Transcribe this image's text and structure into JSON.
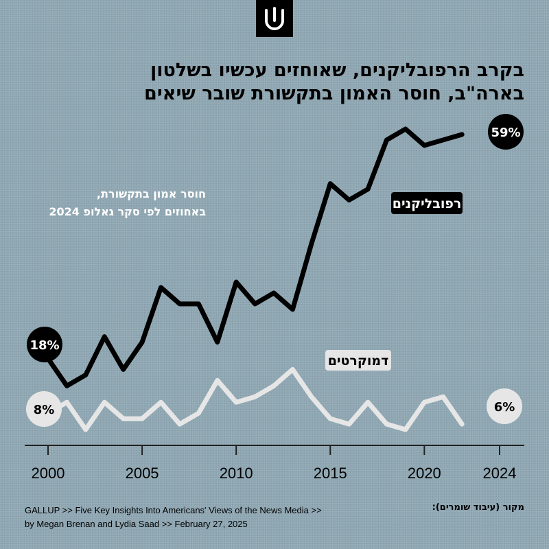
{
  "title_line1": "בקרב הרפובליקנים, שאוחזים עכשיו בשלטון",
  "title_line2": "בארה\"ב, חוסר האמון בתקשורת שובר שיאים",
  "subtitle_line1": "חוסר אמון בתקשורת,",
  "subtitle_line2": "באחוזים לפי סקר גאלופ 2024",
  "footer": {
    "source_line1": "GALLUP >> Five Key Insights Into Americans' Views of the News Media >>",
    "source_line2": "by Megan Brenan and Lydia Saad >> February 27, 2025",
    "credit": "מקור (עיבוד שומרים):"
  },
  "colors": {
    "background": "#8fa7b3",
    "republicans": "#000000",
    "democrats": "#e6e6e6"
  },
  "chart_data": {
    "type": "line",
    "x_ticks": [
      2000,
      2005,
      2010,
      2015,
      2020,
      2024
    ],
    "xlim": [
      1999.5,
      2025.5
    ],
    "ylim": [
      0,
      65
    ],
    "y_axis_shown": false,
    "grid": false,
    "legend": "inline labels",
    "series": [
      {
        "name": "רפובליקנים",
        "color": "#000000",
        "start_label": "18%",
        "end_label": "59%",
        "points": [
          [
            2000,
            18
          ],
          [
            2001,
            13
          ],
          [
            2002,
            15
          ],
          [
            2003,
            22
          ],
          [
            2004,
            16
          ],
          [
            2005,
            21
          ],
          [
            2006,
            31
          ],
          [
            2007,
            28
          ],
          [
            2008,
            28
          ],
          [
            2009,
            21
          ],
          [
            2010,
            32
          ],
          [
            2011,
            28
          ],
          [
            2012,
            30
          ],
          [
            2013,
            27
          ],
          [
            2014,
            39
          ],
          [
            2015,
            50
          ],
          [
            2016,
            47
          ],
          [
            2017,
            49
          ],
          [
            2018,
            58
          ],
          [
            2019,
            60
          ],
          [
            2020,
            57
          ],
          [
            2021,
            58
          ],
          [
            2022,
            59
          ]
        ]
      },
      {
        "name": "דמוקרטים",
        "color": "#e6e6e6",
        "start_label": "8%",
        "end_label": "6%",
        "points": [
          [
            2000,
            8
          ],
          [
            2001,
            10
          ],
          [
            2002,
            5
          ],
          [
            2003,
            10
          ],
          [
            2004,
            7
          ],
          [
            2005,
            7
          ],
          [
            2006,
            10
          ],
          [
            2007,
            6
          ],
          [
            2008,
            8
          ],
          [
            2009,
            14
          ],
          [
            2010,
            10
          ],
          [
            2011,
            11
          ],
          [
            2012,
            13
          ],
          [
            2013,
            16
          ],
          [
            2014,
            11
          ],
          [
            2015,
            7
          ],
          [
            2016,
            6
          ],
          [
            2017,
            10
          ],
          [
            2018,
            6
          ],
          [
            2019,
            5
          ],
          [
            2020,
            10
          ],
          [
            2021,
            11
          ],
          [
            2022,
            6
          ]
        ]
      }
    ]
  }
}
